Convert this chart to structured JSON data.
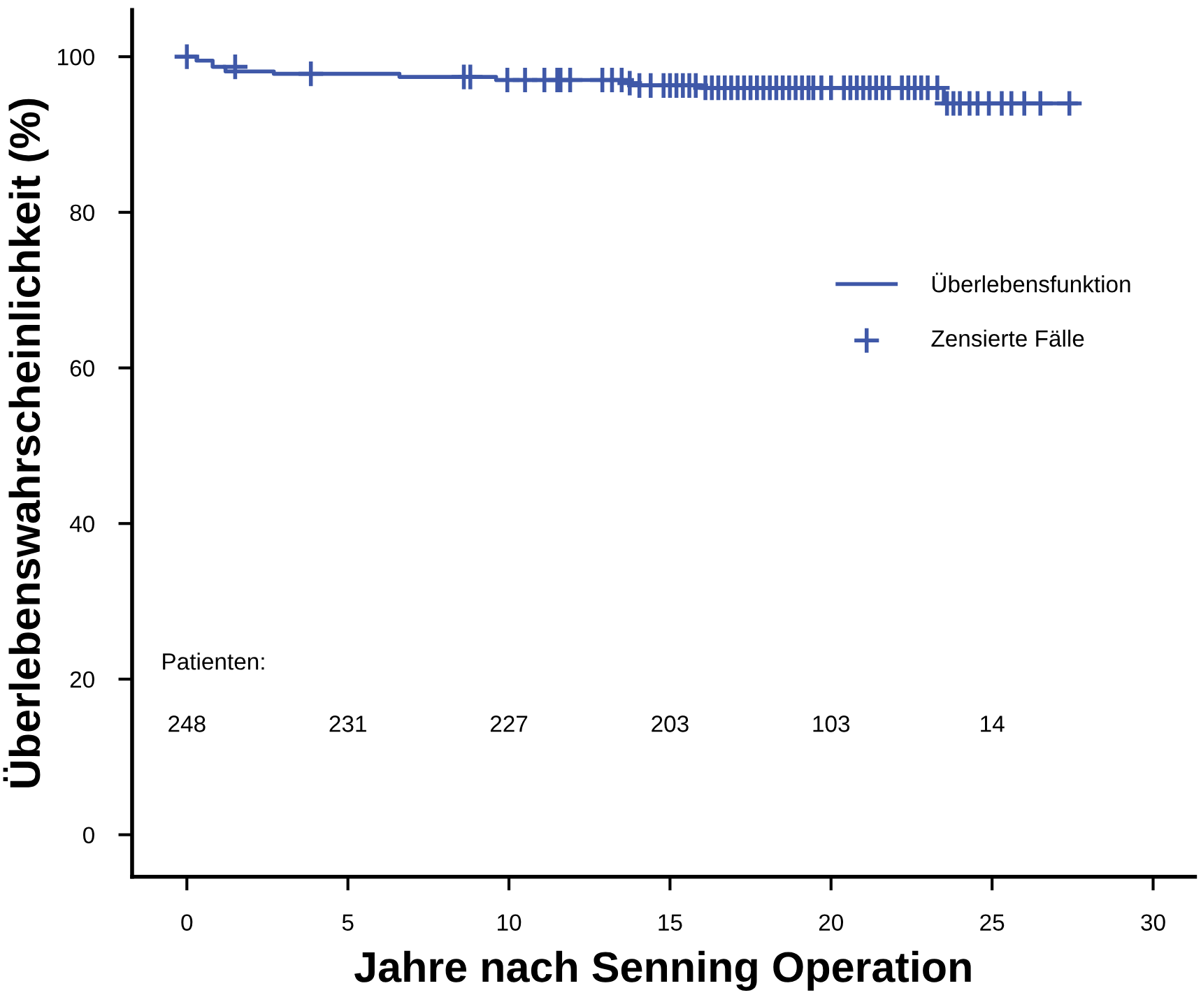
{
  "chart_data": {
    "type": "step",
    "xlabel": "Jahre nach Senning Operation",
    "ylabel": "Überlebenswahrscheinlichkeit (%)",
    "xlim": [
      -1.7,
      31.3
    ],
    "ylim": [
      -5.4,
      106
    ],
    "xticks": [
      0,
      5,
      10,
      15,
      20,
      25,
      30
    ],
    "yticks": [
      0,
      20,
      40,
      60,
      80,
      100
    ],
    "grid": false,
    "legend": "right",
    "annotations": [
      "Patienten:",
      "248",
      "231",
      "227",
      "203",
      "103",
      "14"
    ],
    "series": [
      {
        "name": "Überlebensfunktion",
        "color": "#3f58a8",
        "marker": "none",
        "x": [
          0,
          0.3,
          0.8,
          1.2,
          2.7,
          6.6,
          9.6,
          13.7,
          14.0,
          16.0,
          23.5,
          27.6
        ],
        "values": [
          100,
          99.5,
          98.7,
          98.1,
          97.8,
          97.4,
          97.0,
          96.6,
          96.3,
          96.0,
          94.0,
          94.0
        ]
      },
      {
        "name": "Zensierte Fälle",
        "type": "scatter",
        "color": "#3f58a8",
        "marker": "cross",
        "x": [
          0,
          1.5,
          3.85,
          8.6,
          8.8,
          9.95,
          10.5,
          11.1,
          11.5,
          11.6,
          11.9,
          12.9,
          13.2,
          13.5,
          13.75,
          14.05,
          14.4,
          14.8,
          15.0,
          15.2,
          15.4,
          15.6,
          15.8,
          16.1,
          16.3,
          16.5,
          16.7,
          16.9,
          17.1,
          17.3,
          17.5,
          17.7,
          17.9,
          18.1,
          18.3,
          18.5,
          18.7,
          18.9,
          19.1,
          19.3,
          19.45,
          19.7,
          20.0,
          20.4,
          20.6,
          20.8,
          21.0,
          21.2,
          21.4,
          21.6,
          21.8,
          22.2,
          22.4,
          22.6,
          22.8,
          23.0,
          23.3,
          23.6,
          23.8,
          24.0,
          24.3,
          24.55,
          24.9,
          25.3,
          25.6,
          26.0,
          26.5,
          27.4
        ],
        "values": [
          100,
          98.7,
          97.8,
          97.4,
          97.4,
          97.0,
          97.0,
          97.0,
          97.0,
          97.0,
          97.0,
          97.0,
          97.0,
          97.0,
          96.6,
          96.3,
          96.3,
          96.3,
          96.3,
          96.3,
          96.3,
          96.3,
          96.3,
          96.0,
          96.0,
          96.0,
          96.0,
          96.0,
          96.0,
          96.0,
          96.0,
          96.0,
          96.0,
          96.0,
          96.0,
          96.0,
          96.0,
          96.0,
          96.0,
          96.0,
          96.0,
          96.0,
          96.0,
          96.0,
          96.0,
          96.0,
          96.0,
          96.0,
          96.0,
          96.0,
          96.0,
          96.0,
          96.0,
          96.0,
          96.0,
          96.0,
          96.0,
          94.0,
          94.0,
          94.0,
          94.0,
          94.0,
          94.0,
          94.0,
          94.0,
          94.0,
          94.0,
          94.0
        ]
      }
    ]
  }
}
